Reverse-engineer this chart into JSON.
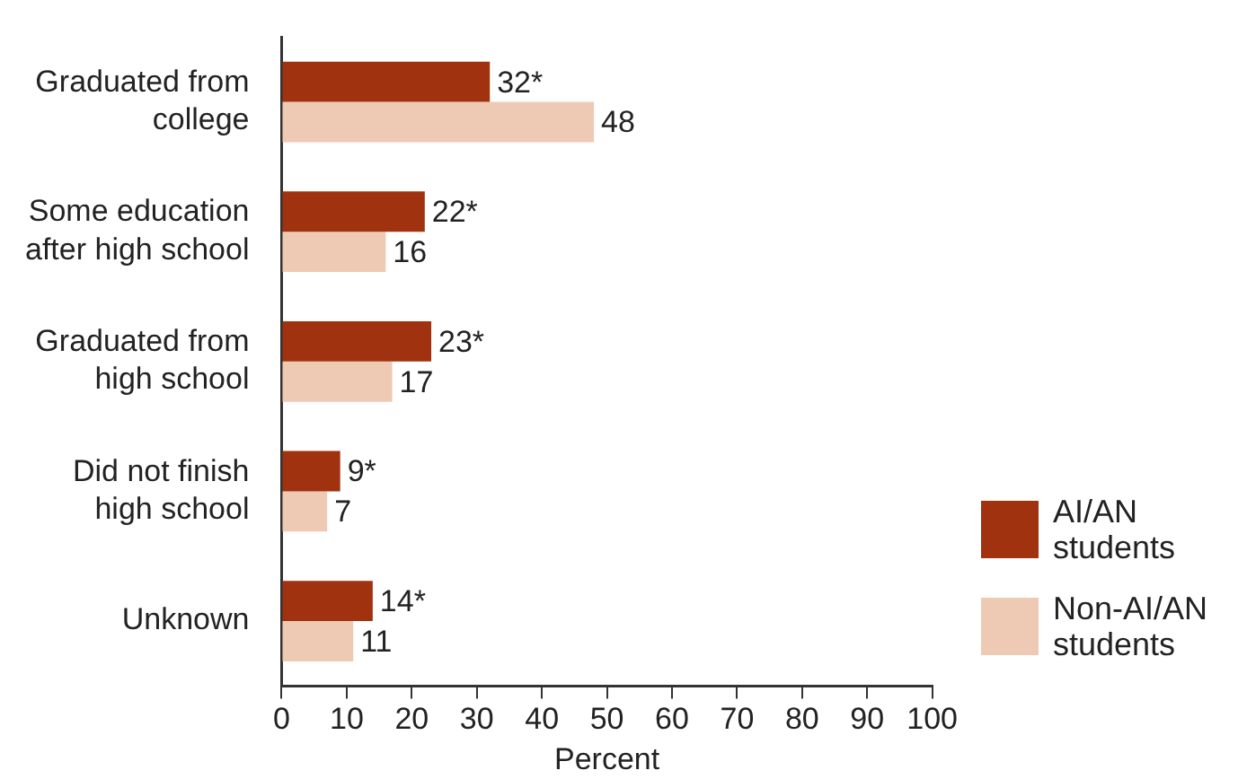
{
  "chart_data": {
    "type": "bar",
    "orientation": "horizontal",
    "xlabel": "Percent",
    "categories": [
      "Graduated from college",
      "Some education after high school",
      "Graduated from high school",
      "Did not finish high school",
      "Unknown"
    ],
    "series": [
      {
        "name": "AI/AN students",
        "color": "#a0320f",
        "values": [
          32,
          22,
          23,
          9,
          14
        ],
        "value_labels": [
          "32*",
          "22*",
          "23*",
          "9*",
          "14*"
        ]
      },
      {
        "name": "Non-AI/AN students",
        "color": "#eecab5",
        "values": [
          48,
          16,
          17,
          7,
          11
        ],
        "value_labels": [
          "48",
          "16",
          "17",
          "7",
          "11"
        ]
      }
    ],
    "xlim": [
      0,
      100
    ],
    "xticks": [
      0,
      10,
      20,
      30,
      40,
      50,
      60,
      70,
      80,
      90,
      100
    ],
    "grid": false,
    "legend": "bottom right"
  }
}
